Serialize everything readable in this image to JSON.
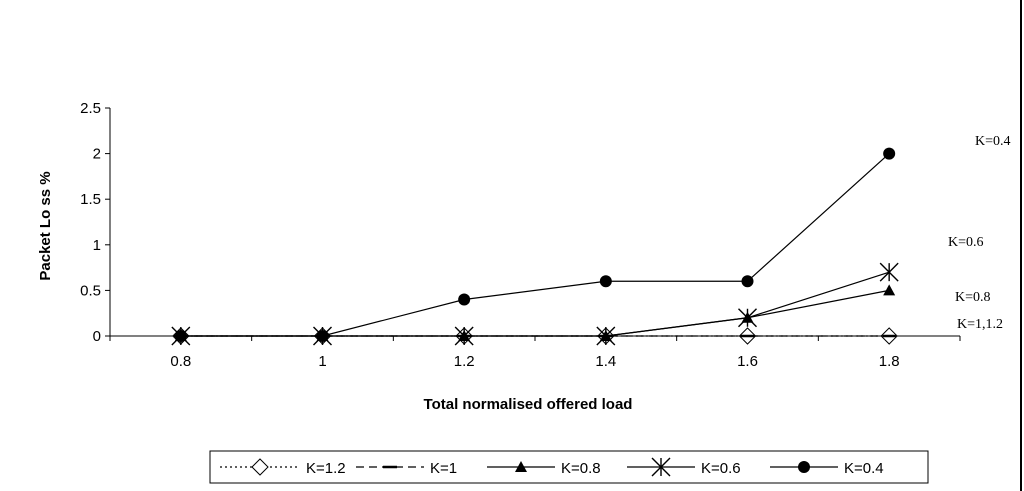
{
  "chart_data": {
    "type": "line",
    "title": "",
    "xlabel": "Total normalised offered load",
    "ylabel": "Packet Lo ss %",
    "x": [
      0.8,
      1,
      1.2,
      1.4,
      1.6,
      1.8
    ],
    "x_tick_labels": [
      "0.8",
      "1",
      "1.2",
      "1.4",
      "1.6",
      "1.8"
    ],
    "y_tick_labels": [
      "0",
      "0.5",
      "1",
      "1.5",
      "2",
      "2.5"
    ],
    "ylim": [
      0,
      2.5
    ],
    "grid": false,
    "legend_position": "bottom",
    "series": [
      {
        "name": "K=1.2",
        "values": [
          0,
          0,
          0,
          0,
          0,
          0
        ],
        "marker": "diamond-open",
        "line": "dotted",
        "color": "#000000"
      },
      {
        "name": "K=1",
        "values": [
          0,
          0,
          0,
          0,
          0,
          0
        ],
        "marker": "dash",
        "line": "dashed",
        "color": "#000000"
      },
      {
        "name": "K=0.8",
        "values": [
          0,
          0,
          0,
          0,
          0.2,
          0.5
        ],
        "marker": "triangle",
        "line": "solid",
        "color": "#000000"
      },
      {
        "name": "K=0.6",
        "values": [
          0,
          0,
          0,
          0,
          0.2,
          0.7
        ],
        "marker": "asterisk",
        "line": "solid",
        "color": "#000000"
      },
      {
        "name": "K=0.4",
        "values": [
          0,
          0,
          0.4,
          0.6,
          0.6,
          2.0
        ],
        "marker": "circle",
        "line": "solid",
        "color": "#000000"
      }
    ],
    "annotations": [
      "K=0.4",
      "K=0.6",
      "K=0.8",
      "K=1,1.2"
    ]
  }
}
